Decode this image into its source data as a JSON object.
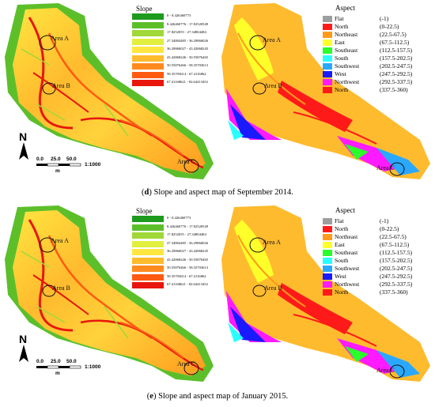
{
  "figures": [
    {
      "caption_letter": "d",
      "caption_text": " Slope and aspect map of September 2014.",
      "slope_title": "Slope",
      "aspect_title": "Aspect",
      "scale_ticks": [
        "0.0",
        "25.0",
        "50.0"
      ],
      "scale_unit": "m",
      "scale_ratio": "1:1000",
      "north_label": "N",
      "areas": [
        "Area A",
        "Area B",
        "Area C"
      ]
    },
    {
      "caption_letter": "e",
      "caption_text": " Slope and aspect map of January 2015.",
      "slope_title": "Slope",
      "aspect_title": "Aspect",
      "scale_ticks": [
        "0.0",
        "25.0",
        "50.0"
      ],
      "scale_unit": "m",
      "scale_ratio": "1:1000",
      "north_label": "N",
      "areas": [
        "Area A",
        "Area B",
        "Area C"
      ]
    }
  ],
  "slope_legend": [
    {
      "label": "0 - 8.426460773",
      "color": "#1e9a1e"
    },
    {
      "label": "8.426460776 - 17.82520549",
      "color": "#5cbf2a"
    },
    {
      "label": "17.8252055 - 27.34804484",
      "color": "#9fd838"
    },
    {
      "label": "27.34804485 - 36.29860026",
      "color": "#e2ef3e"
    },
    {
      "label": "36.29860027 - 43.42868245",
      "color": "#ffe640"
    },
    {
      "label": "43.42868246 - 50.55876465",
      "color": "#ffbb2e"
    },
    {
      "label": "50.55876466 - 58.35703613",
      "color": "#ff8a1e"
    },
    {
      "label": "58.35703614 - 67.4116862",
      "color": "#ff5a12"
    },
    {
      "label": "67.41168621 - 82.64413452",
      "color": "#e8160c"
    }
  ],
  "aspect_legend": [
    {
      "name": "Flat",
      "range": "(-1)",
      "color": "#9e9e9e"
    },
    {
      "name": "North",
      "range": "(0-22.5)",
      "color": "#ff1a1a"
    },
    {
      "name": "Northeast",
      "range": "(22.5-67.5)",
      "color": "#ff9a1a"
    },
    {
      "name": "East",
      "range": "(67.5-112.5)",
      "color": "#ffff2a"
    },
    {
      "name": "Southeast",
      "range": "(112.5-157.5)",
      "color": "#2aff2a"
    },
    {
      "name": "South",
      "range": "(157.5-202.5)",
      "color": "#2affff"
    },
    {
      "name": "Southwest",
      "range": "(202.5-247.5)",
      "color": "#2aa8ff"
    },
    {
      "name": "West",
      "range": "(247.5-292.5)",
      "color": "#1a1aff"
    },
    {
      "name": "Northwest",
      "range": "(292.5-337.5)",
      "color": "#ff1aff"
    },
    {
      "name": "North",
      "range": "(337.5-360)",
      "color": "#ff1a1a"
    }
  ]
}
